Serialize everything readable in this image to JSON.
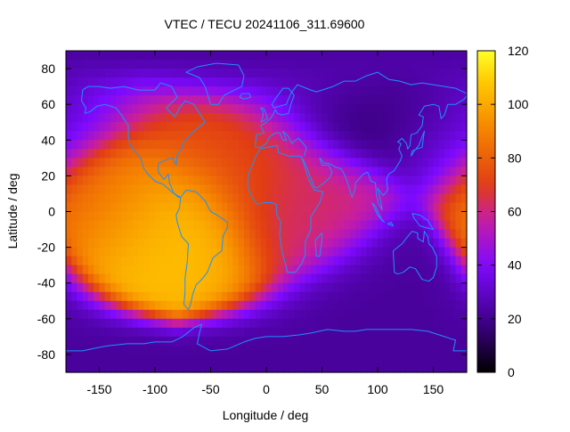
{
  "chart_data": {
    "type": "heatmap",
    "title": "VTEC / TECU 20241106_311.69600",
    "xlabel": "Longitude / deg",
    "ylabel": "Latitude / deg",
    "xlim": [
      -180,
      180
    ],
    "ylim": [
      -90,
      90
    ],
    "x_ticks": [
      -150,
      -100,
      -50,
      0,
      50,
      100,
      150
    ],
    "x_tick_labels": [
      "-150",
      "-100",
      "-50",
      "0",
      "50",
      "100",
      "150"
    ],
    "y_ticks": [
      -80,
      -60,
      -40,
      -20,
      0,
      20,
      40,
      60,
      80
    ],
    "y_tick_labels": [
      "-80",
      "-60",
      "-40",
      "-20",
      "0",
      "20",
      "40",
      "60",
      "80"
    ],
    "colorbar": {
      "range": [
        0,
        120
      ],
      "ticks": [
        0,
        20,
        40,
        60,
        80,
        100,
        120
      ],
      "tick_labels": [
        "0",
        "20",
        "40",
        "60",
        "80",
        "100",
        "120"
      ],
      "colormap": "black-purple-red-orange-yellow"
    },
    "field_features": [
      {
        "lon": -95,
        "lat": 0,
        "vtec": 112
      },
      {
        "lon": -70,
        "lat": -8,
        "vtec": 105
      },
      {
        "lon": -120,
        "lat": 10,
        "vtec": 80
      },
      {
        "lon": -60,
        "lat": 45,
        "vtec": 72
      },
      {
        "lon": -20,
        "lat": 20,
        "vtec": 70
      },
      {
        "lon": 30,
        "lat": 0,
        "vtec": 62
      },
      {
        "lon": 70,
        "lat": 65,
        "vtec": 12
      },
      {
        "lon": 100,
        "lat": -50,
        "vtec": 22
      },
      {
        "lon": 170,
        "lat": 60,
        "vtec": 28
      }
    ],
    "background_vtec": 35,
    "overlay": "coastlines",
    "overlay_color": "#1e90ff"
  }
}
